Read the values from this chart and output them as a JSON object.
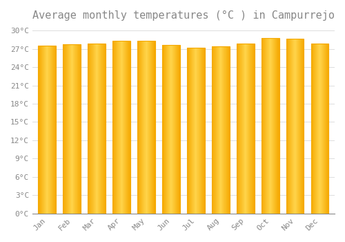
{
  "title": "Average monthly temperatures (°C ) in Campurrejo",
  "months": [
    "Jan",
    "Feb",
    "Mar",
    "Apr",
    "May",
    "Jun",
    "Jul",
    "Aug",
    "Sep",
    "Oct",
    "Nov",
    "Dec"
  ],
  "values": [
    27.5,
    27.8,
    27.9,
    28.3,
    28.3,
    27.6,
    27.2,
    27.4,
    27.9,
    28.8,
    28.7,
    27.9
  ],
  "bar_color_center": "#FFD44A",
  "bar_color_edge": "#F5A800",
  "background_color": "#FFFFFF",
  "grid_color": "#DDDDDD",
  "ylim": [
    0,
    31
  ],
  "yticks": [
    0,
    3,
    6,
    9,
    12,
    15,
    18,
    21,
    24,
    27,
    30
  ],
  "ytick_labels": [
    "0°C",
    "3°C",
    "6°C",
    "9°C",
    "12°C",
    "15°C",
    "18°C",
    "21°C",
    "24°C",
    "27°C",
    "30°C"
  ],
  "title_fontsize": 11,
  "tick_fontsize": 8,
  "font_color": "#888888",
  "bar_width": 0.72,
  "n_gradient_steps": 50
}
